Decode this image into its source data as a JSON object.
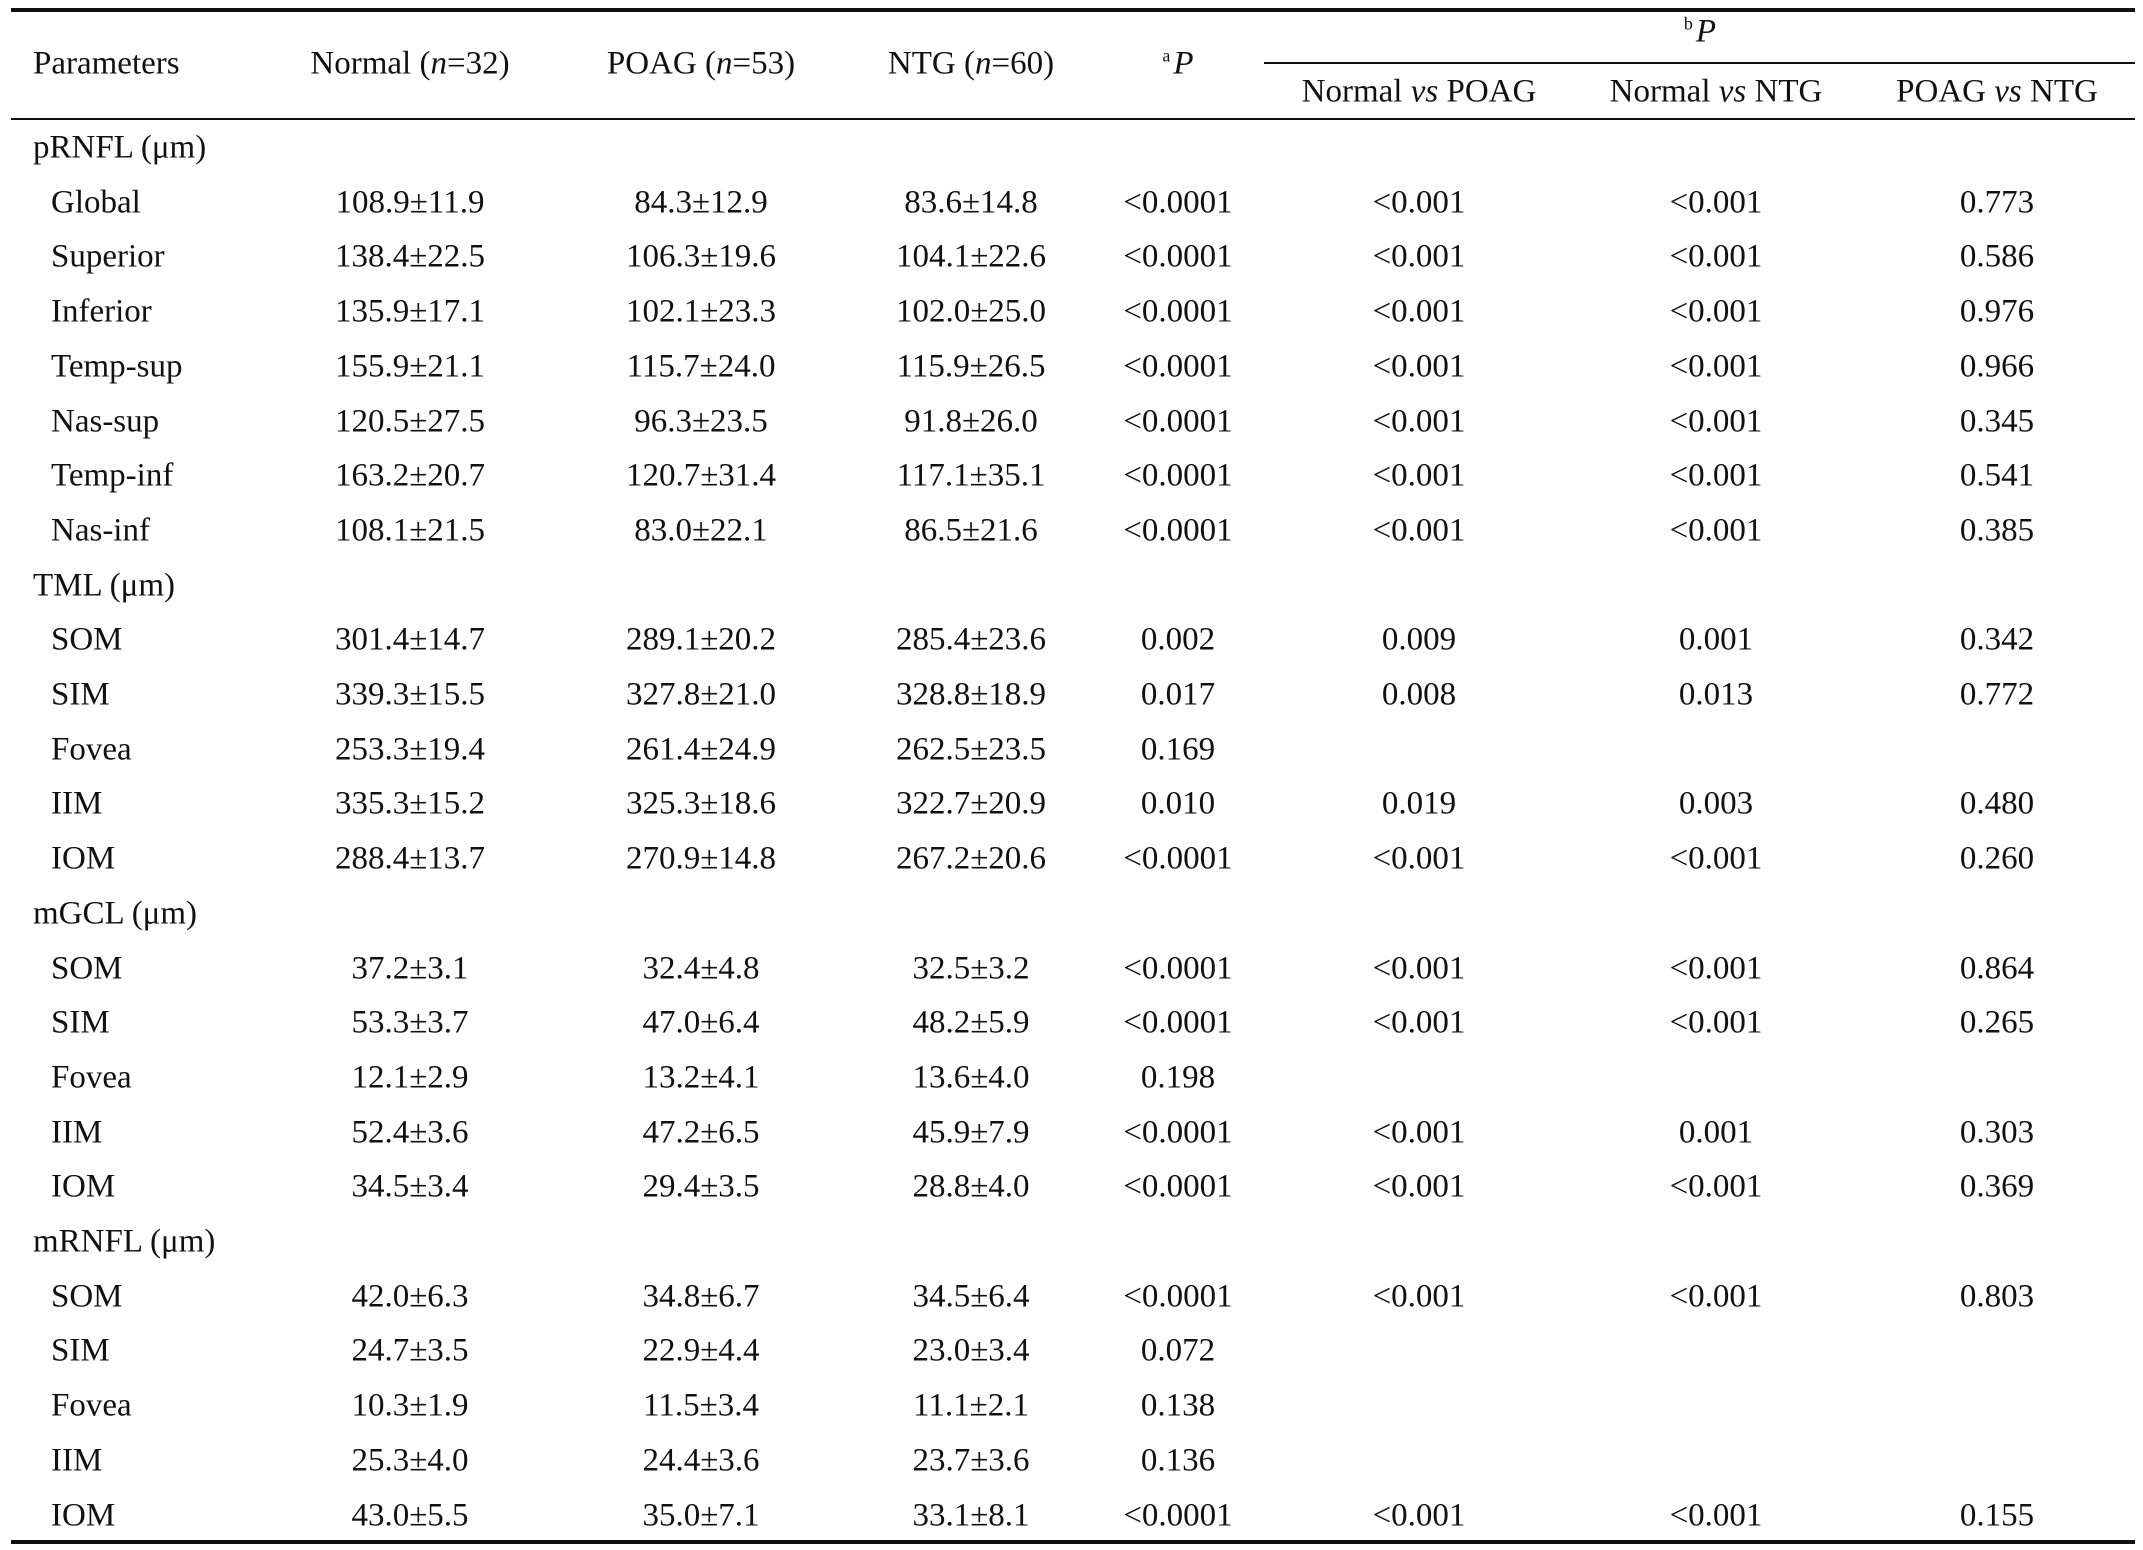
{
  "header": {
    "columns": [
      [
        "Parameters"
      ],
      [
        "Normal (",
        "n",
        "=32)"
      ],
      [
        "POAG (",
        "n",
        "=53)"
      ],
      [
        "NTG (",
        "n",
        "=60)"
      ],
      [
        "a",
        "P"
      ]
    ],
    "group_p": [
      "b",
      "P"
    ],
    "subcolumns": [
      [
        "Normal ",
        "vs",
        " POAG"
      ],
      [
        "Normal ",
        "vs",
        " NTG"
      ],
      [
        "POAG ",
        "vs",
        " NTG"
      ]
    ]
  },
  "table": {
    "groups": [
      {
        "title": "pRNFL (μm)",
        "rows": [
          [
            "Global",
            "108.9±11.9",
            "84.3±12.9",
            "83.6±14.8",
            "<0.0001",
            "<0.001",
            "<0.001",
            "0.773"
          ],
          [
            "Superior",
            "138.4±22.5",
            "106.3±19.6",
            "104.1±22.6",
            "<0.0001",
            "<0.001",
            "<0.001",
            "0.586"
          ],
          [
            "Inferior",
            "135.9±17.1",
            "102.1±23.3",
            "102.0±25.0",
            "<0.0001",
            "<0.001",
            "<0.001",
            "0.976"
          ],
          [
            "Temp-sup",
            "155.9±21.1",
            "115.7±24.0",
            "115.9±26.5",
            "<0.0001",
            "<0.001",
            "<0.001",
            "0.966"
          ],
          [
            "Nas-sup",
            "120.5±27.5",
            "96.3±23.5",
            "91.8±26.0",
            "<0.0001",
            "<0.001",
            "<0.001",
            "0.345"
          ],
          [
            "Temp-inf",
            "163.2±20.7",
            "120.7±31.4",
            "117.1±35.1",
            "<0.0001",
            "<0.001",
            "<0.001",
            "0.541"
          ],
          [
            "Nas-inf",
            "108.1±21.5",
            "83.0±22.1",
            "86.5±21.6",
            "<0.0001",
            "<0.001",
            "<0.001",
            "0.385"
          ]
        ]
      },
      {
        "title": "TML (μm)",
        "rows": [
          [
            "SOM",
            "301.4±14.7",
            "289.1±20.2",
            "285.4±23.6",
            "0.002",
            "0.009",
            "0.001",
            "0.342"
          ],
          [
            "SIM",
            "339.3±15.5",
            "327.8±21.0",
            "328.8±18.9",
            "0.017",
            "0.008",
            "0.013",
            "0.772"
          ],
          [
            "Fovea",
            "253.3±19.4",
            "261.4±24.9",
            "262.5±23.5",
            "0.169",
            null,
            null,
            null
          ],
          [
            "IIM",
            "335.3±15.2",
            "325.3±18.6",
            "322.7±20.9",
            "0.010",
            "0.019",
            "0.003",
            "0.480"
          ],
          [
            "IOM",
            "288.4±13.7",
            "270.9±14.8",
            "267.2±20.6",
            "<0.0001",
            "<0.001",
            "<0.001",
            "0.260"
          ]
        ]
      },
      {
        "title": "mGCL (μm)",
        "rows": [
          [
            "SOM",
            "37.2±3.1",
            "32.4±4.8",
            "32.5±3.2",
            "<0.0001",
            "<0.001",
            "<0.001",
            "0.864"
          ],
          [
            "SIM",
            "53.3±3.7",
            "47.0±6.4",
            "48.2±5.9",
            "<0.0001",
            "<0.001",
            "<0.001",
            "0.265"
          ],
          [
            "Fovea",
            "12.1±2.9",
            "13.2±4.1",
            "13.6±4.0",
            "0.198",
            null,
            null,
            null
          ],
          [
            "IIM",
            "52.4±3.6",
            "47.2±6.5",
            "45.9±7.9",
            "<0.0001",
            "<0.001",
            "0.001",
            "0.303"
          ],
          [
            "IOM",
            "34.5±3.4",
            "29.4±3.5",
            "28.8±4.0",
            "<0.0001",
            "<0.001",
            "<0.001",
            "0.369"
          ]
        ]
      },
      {
        "title": "mRNFL (μm)",
        "rows": [
          [
            "SOM",
            "42.0±6.3",
            "34.8±6.7",
            "34.5±6.4",
            "<0.0001",
            "<0.001",
            "<0.001",
            "0.803"
          ],
          [
            "SIM",
            "24.7±3.5",
            "22.9±4.4",
            "23.0±3.4",
            "0.072",
            null,
            null,
            null
          ],
          [
            "Fovea",
            "10.3±1.9",
            "11.5±3.4",
            "11.1±2.1",
            "0.138",
            null,
            null,
            null
          ],
          [
            "IIM",
            "25.3±4.0",
            "24.4±3.6",
            "23.7±3.6",
            "0.136",
            null,
            null,
            null
          ],
          [
            "IOM",
            "43.0±5.5",
            "35.0±7.1",
            "33.1±8.1",
            "<0.0001",
            "<0.001",
            "<0.001",
            "0.155"
          ]
        ]
      }
    ]
  }
}
